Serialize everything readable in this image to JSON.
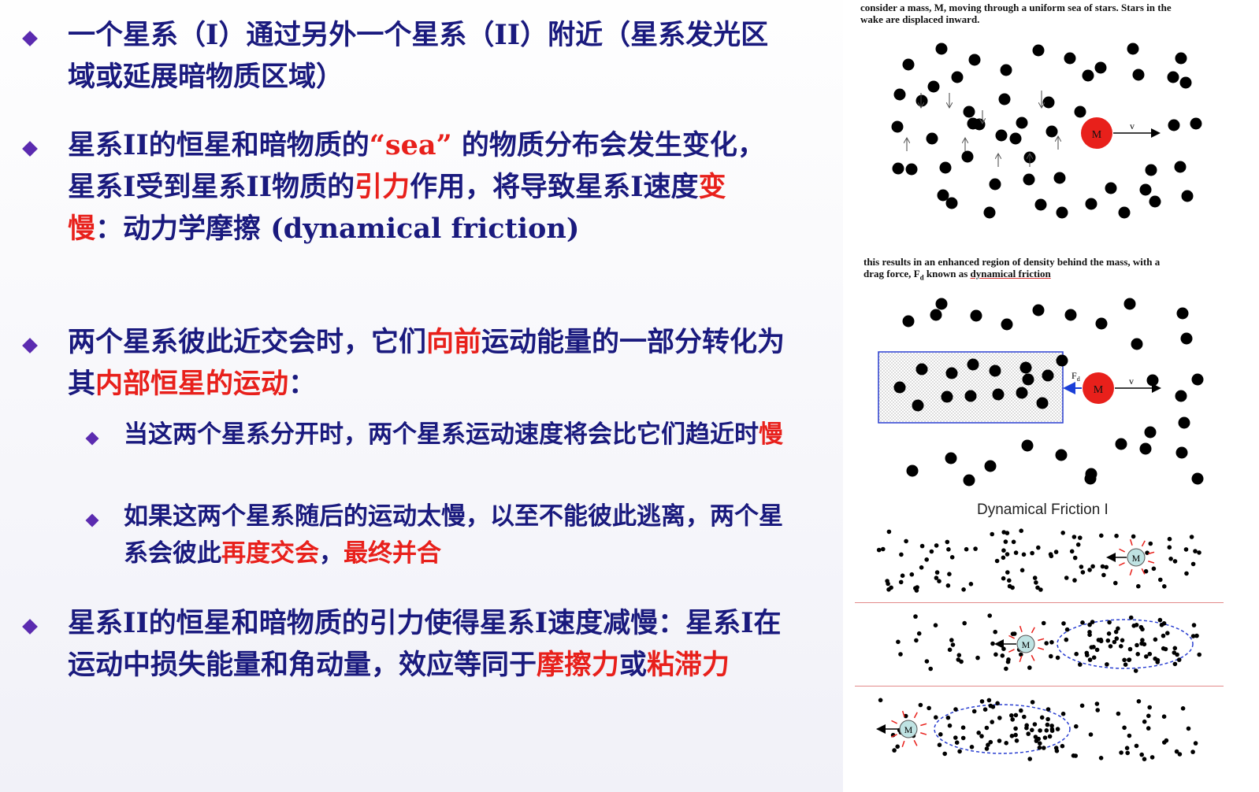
{
  "bullets": [
    {
      "parts": [
        {
          "text": "一个星系（I）通过另外一个星系（II）附近（星系发光区域或延展暗物质区域）",
          "red": false
        }
      ]
    },
    {
      "parts": [
        {
          "text": "星系II的恒星和暗物质的",
          "red": false
        },
        {
          "text": "“sea”",
          "red": true
        },
        {
          "text": " 的物质分布会发生变化，星系I受到星系II物质的",
          "red": false
        },
        {
          "text": "引力",
          "red": true
        },
        {
          "text": "作用，将导致星系I速度",
          "red": false
        },
        {
          "text": "变慢",
          "red": true
        },
        {
          "text": "：动力学摩擦 (dynamical friction)",
          "red": false
        }
      ]
    },
    {
      "parts": [
        {
          "text": "两个星系彼此近交会时，它们",
          "red": false
        },
        {
          "text": "向前",
          "red": true
        },
        {
          "text": "运动能量的一部分转化为其",
          "red": false
        },
        {
          "text": "内部恒星的运动",
          "red": true
        },
        {
          "text": "：",
          "red": false
        }
      ]
    },
    {
      "parts": [
        {
          "text": "星系II的恒星和暗物质的引力使得星系I速度减慢：星系I在运动中损失能量和角动量，效应等同于",
          "red": false
        },
        {
          "text": "摩擦力",
          "red": true
        },
        {
          "text": "或",
          "red": false
        },
        {
          "text": "粘滞力",
          "red": true
        }
      ]
    }
  ],
  "subbullets": [
    {
      "parts": [
        {
          "text": "当这两个星系分开时，两个星系运动速度将会比它们趋近时",
          "red": false
        },
        {
          "text": "慢",
          "red": true
        }
      ]
    },
    {
      "parts": [
        {
          "text": "如果这两个星系随后的运动太慢，以至不能彼此逃离，两个星系会彼此",
          "red": false
        },
        {
          "text": "再度交会",
          "red": true
        },
        {
          "text": "，",
          "red": false
        },
        {
          "text": "最终并合",
          "red": true
        }
      ]
    }
  ],
  "figure": {
    "caption1_line1": "consider a mass, M, moving through a uniform sea of stars.  Stars in the",
    "caption1_line2": "wake are displaced inward.",
    "caption2_line1": "this results in an enhanced region of density behind the mass, with a",
    "caption2_line2_a": "drag force, F",
    "caption2_line2_sub": "d",
    "caption2_line2_b": " known as ",
    "caption2_link": "dynamical friction",
    "mass_label": "M",
    "velocity_label": "v",
    "force_label": "F",
    "force_sub": "d",
    "sim_title": "Dynamical Friction  I"
  },
  "colors": {
    "text": "#1a1a7e",
    "accent": "#e8201b",
    "bullet": "#5b2bb0",
    "mass": "#e8201b",
    "sim_mass": "#bfe3e3"
  }
}
